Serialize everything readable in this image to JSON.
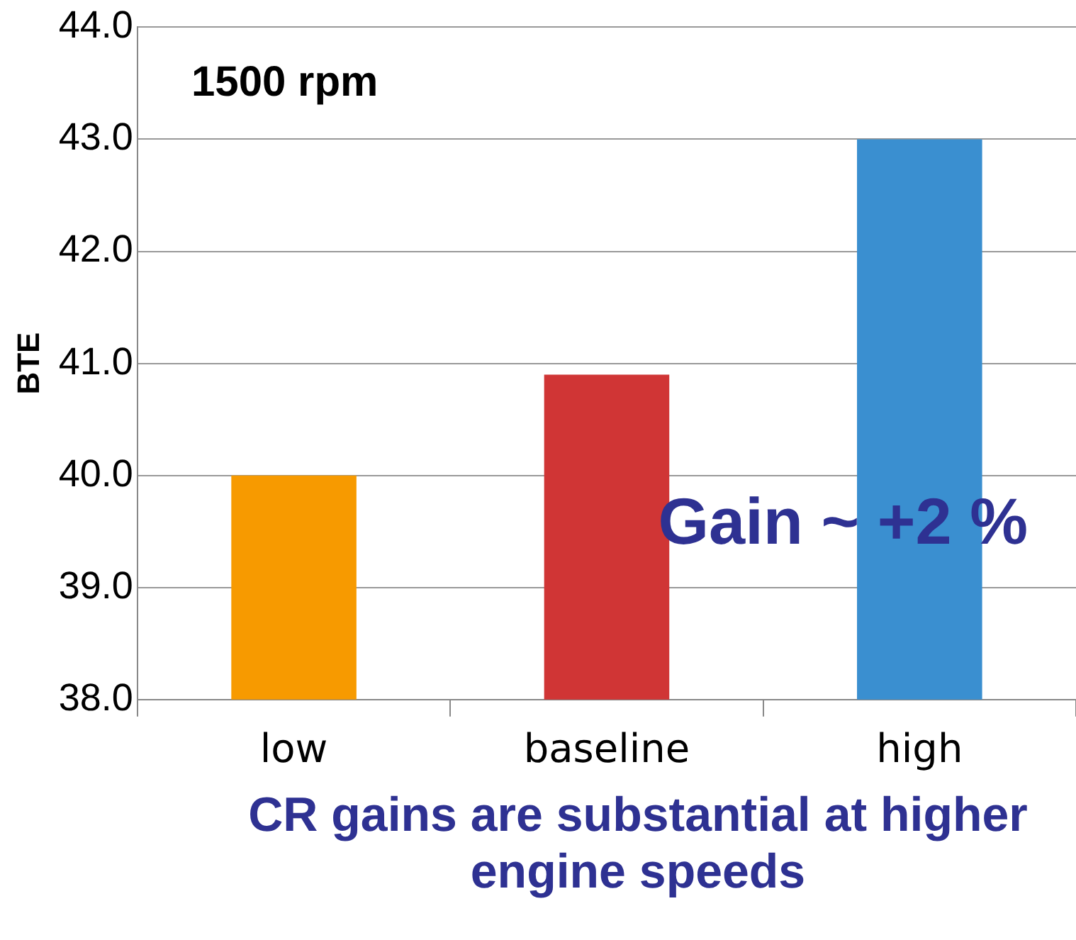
{
  "chart_data": {
    "type": "bar",
    "title": "1500 rpm",
    "ylabel": "BTE",
    "categories": [
      "low",
      "baseline",
      "high"
    ],
    "values": [
      40.0,
      40.9,
      43.0
    ],
    "colors": [
      "#f79a00",
      "#d03535",
      "#3a8fd0"
    ],
    "ylim": [
      38,
      44
    ],
    "yticks": [
      {
        "value": 38,
        "label": "38.0"
      },
      {
        "value": 39,
        "label": "39.0"
      },
      {
        "value": 40,
        "label": "40.0"
      },
      {
        "value": 41,
        "label": "41.0"
      },
      {
        "value": 42,
        "label": "42.0"
      },
      {
        "value": 43,
        "label": "43.0"
      },
      {
        "value": 44,
        "label": "44.0"
      }
    ],
    "grid": "y",
    "annotations": [
      "Gain ~ +2 %",
      "CR gains are substantial at higher engine speeds"
    ]
  }
}
